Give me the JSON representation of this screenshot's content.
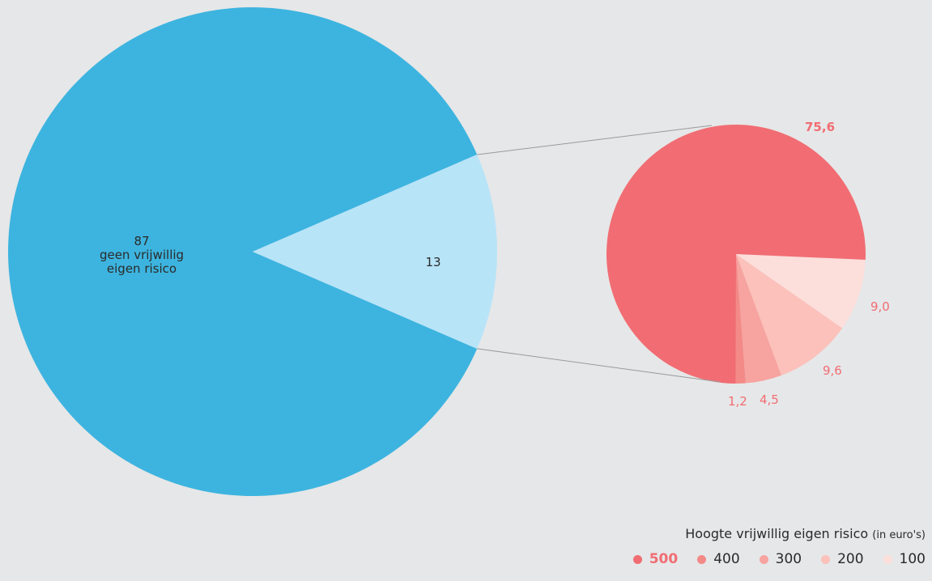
{
  "chart_data": [
    {
      "type": "pie",
      "slices": [
        {
          "label": "geen vrijwillig eigen risico",
          "value": 87,
          "value_label": "87",
          "color": "#3db4df"
        },
        {
          "label": "",
          "value": 13,
          "value_label": "13",
          "color": "#b8e4f8"
        }
      ]
    },
    {
      "type": "pie",
      "legend": {
        "title": "Hoogte vrijwillig eigen risico",
        "unit": "(in euro's)",
        "entries": [
          "500",
          "400",
          "300",
          "200",
          "100"
        ]
      },
      "slices": [
        {
          "category": "500",
          "value": 75.6,
          "value_label": "75,6",
          "color": "#f16d73"
        },
        {
          "category": "100",
          "value": 9.0,
          "value_label": "9,0",
          "color": "#fcdedb"
        },
        {
          "category": "200",
          "value": 9.6,
          "value_label": "9,6",
          "color": "#fbc1ba"
        },
        {
          "category": "300",
          "value": 4.5,
          "value_label": "4,5",
          "color": "#f7a3a0"
        },
        {
          "category": "400",
          "value": 1.2,
          "value_label": "1,2",
          "color": "#f38a88"
        }
      ]
    }
  ]
}
